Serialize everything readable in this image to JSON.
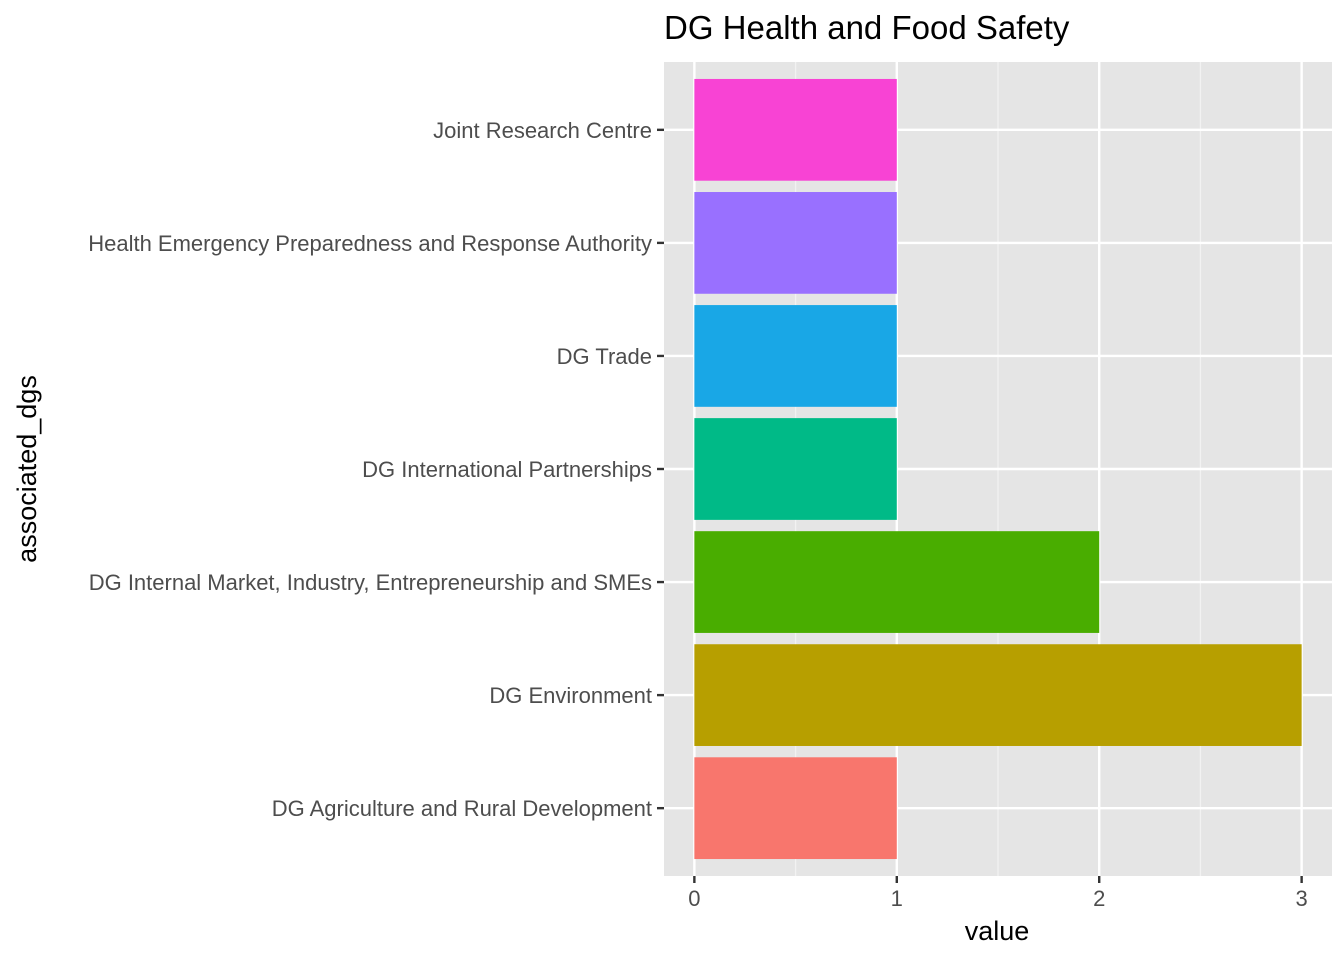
{
  "chart_data": {
    "type": "bar",
    "orientation": "horizontal",
    "title": "DG Health and Food Safety",
    "xlabel": "value",
    "ylabel": "associated_dgs",
    "xlim": [
      0,
      3
    ],
    "x_ticks": [
      "0",
      "1",
      "2",
      "3"
    ],
    "grid": true,
    "legend": "none",
    "categories": [
      "DG Agriculture and Rural Development",
      "DG Environment",
      "DG Internal Market, Industry, Entrepreneurship and SMEs",
      "DG International Partnerships",
      "DG Trade",
      "Health Emergency Preparedness and Response Authority",
      "Joint Research Centre"
    ],
    "values": [
      1,
      3,
      2,
      1,
      1,
      1,
      1
    ],
    "colors": [
      "#F8766D",
      "#B79F00",
      "#49AD00",
      "#00BA87",
      "#19A7E6",
      "#9970FF",
      "#F843D4"
    ]
  }
}
